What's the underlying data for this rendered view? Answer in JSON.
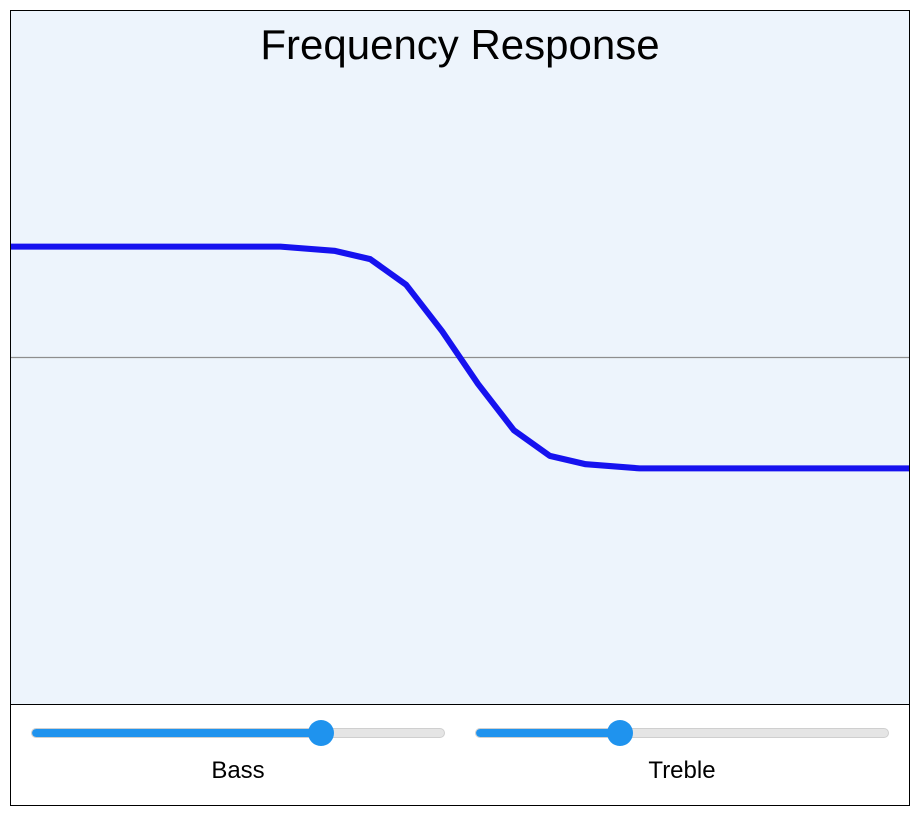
{
  "chart": {
    "type": "line",
    "title": "Frequency Response",
    "title_fontsize": 42,
    "title_color": "#000000",
    "background_color": "#edf4fc",
    "panel_border_color": "#000000",
    "midline": {
      "y": 0.5,
      "color": "#8e8e8e",
      "width": 1.3
    },
    "curve": {
      "color": "#1612ef",
      "width": 6,
      "points": [
        {
          "x": 0.0,
          "y": 0.66
        },
        {
          "x": 0.02,
          "y": 0.66
        },
        {
          "x": 0.3,
          "y": 0.66
        },
        {
          "x": 0.36,
          "y": 0.654
        },
        {
          "x": 0.4,
          "y": 0.642
        },
        {
          "x": 0.44,
          "y": 0.605
        },
        {
          "x": 0.48,
          "y": 0.538
        },
        {
          "x": 0.5,
          "y": 0.5
        },
        {
          "x": 0.52,
          "y": 0.462
        },
        {
          "x": 0.56,
          "y": 0.395
        },
        {
          "x": 0.6,
          "y": 0.358
        },
        {
          "x": 0.64,
          "y": 0.346
        },
        {
          "x": 0.7,
          "y": 0.34
        },
        {
          "x": 0.98,
          "y": 0.34
        },
        {
          "x": 1.0,
          "y": 0.34
        }
      ]
    }
  },
  "sliders": {
    "bass": {
      "label": "Bass",
      "value": 0.7,
      "track_bg": "#e5e5e5",
      "track_border": "#cfcfcf",
      "fill_color": "#1f93ee",
      "thumb_color": "#1f93ee"
    },
    "treble": {
      "label": "Treble",
      "value": 0.35,
      "track_bg": "#e5e5e5",
      "track_border": "#cfcfcf",
      "fill_color": "#1f93ee",
      "thumb_color": "#1f93ee"
    }
  }
}
